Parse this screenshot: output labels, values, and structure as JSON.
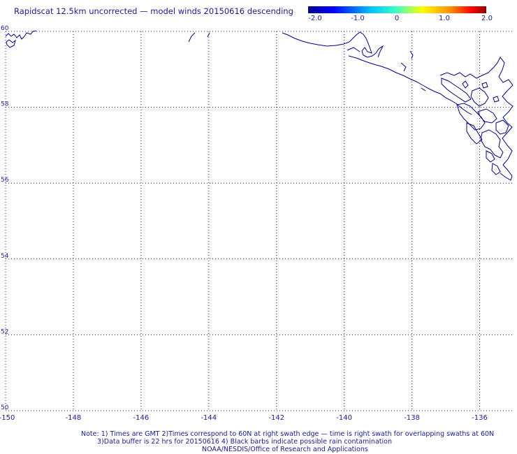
{
  "title": "Rapidscat 12.5km uncorrected — model winds 20150616 descending",
  "colorbar": {
    "labels": [
      "-2.0",
      "-1.0",
      "0",
      "1.0",
      "2.0"
    ],
    "colors": [
      "#00008b",
      "#0000ff",
      "#00c8ff",
      "#40ffbf",
      "#ffff00",
      "#ff8c00",
      "#ff0000",
      "#8b0000"
    ]
  },
  "map": {
    "lon_range": [
      -150,
      -135
    ],
    "lat_range": [
      50,
      60
    ],
    "x_ticks": [
      "-150",
      "-148",
      "-146",
      "-144",
      "-142",
      "-140",
      "-138",
      "-136"
    ],
    "y_ticks": [
      "60",
      "58",
      "56",
      "54",
      "52",
      "50"
    ],
    "grid": "dotted",
    "coastline_color": "#00007f",
    "gridline_color": "#1a1a8c"
  },
  "notes": {
    "line1": "Note: 1) Times are GMT 2)Times correspond to 60N at right swath edge — time is right swath for overlapping swaths at 60N",
    "line2": "3)Data buffer is 22 hrs for 20150616 4) Black barbs indicate possible rain contamination",
    "line3": "NOAA/NESDIS/Office of Research and Applications"
  }
}
